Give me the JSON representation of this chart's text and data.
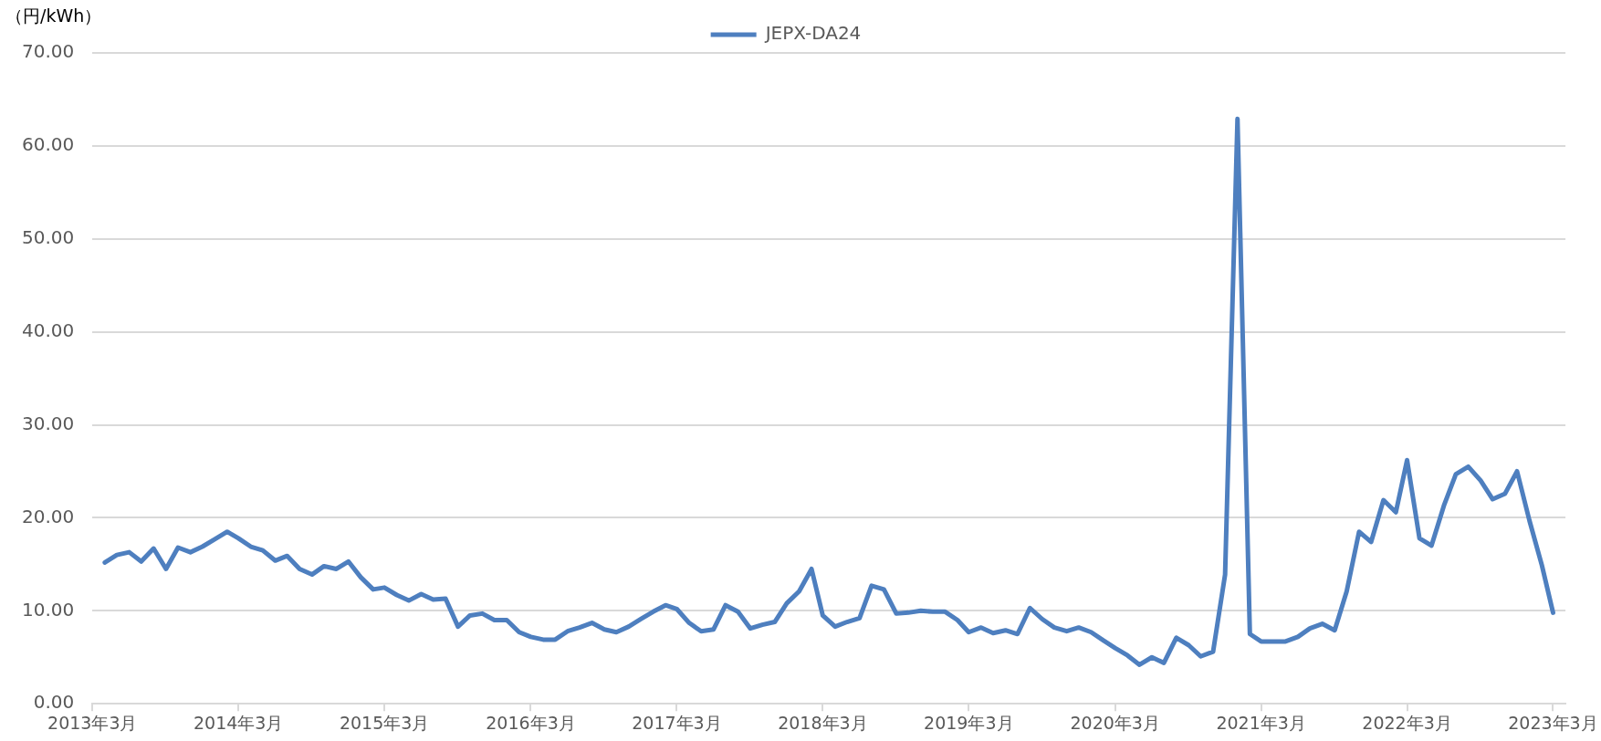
{
  "chart_data": {
    "type": "line",
    "ylabel": "（円/kWh）",
    "legend": "top",
    "grid": "y",
    "marker": "none",
    "line_style": "solid",
    "ylim": [
      0,
      70
    ],
    "yticks": [
      {
        "value": 0,
        "label": "0.00"
      },
      {
        "value": 10,
        "label": "10.00"
      },
      {
        "value": 20,
        "label": "20.00"
      },
      {
        "value": 30,
        "label": "30.00"
      },
      {
        "value": 40,
        "label": "40.00"
      },
      {
        "value": 50,
        "label": "50.00"
      },
      {
        "value": 60,
        "label": "60.00"
      },
      {
        "value": 70,
        "label": "70.00"
      }
    ],
    "xlim": [
      "2013-03",
      "2023-04"
    ],
    "xticks": [
      {
        "value": "2013-03",
        "label": "2013年3月"
      },
      {
        "value": "2014-03",
        "label": "2014年3月"
      },
      {
        "value": "2015-03",
        "label": "2015年3月"
      },
      {
        "value": "2016-03",
        "label": "2016年3月"
      },
      {
        "value": "2017-03",
        "label": "2017年3月"
      },
      {
        "value": "2018-03",
        "label": "2018年3月"
      },
      {
        "value": "2019-03",
        "label": "2019年3月"
      },
      {
        "value": "2020-03",
        "label": "2020年3月"
      },
      {
        "value": "2021-03",
        "label": "2021年3月"
      },
      {
        "value": "2022-03",
        "label": "2022年3月"
      },
      {
        "value": "2023-03",
        "label": "2023年3月"
      }
    ],
    "x": [
      "2013-04",
      "2013-05",
      "2013-06",
      "2013-07",
      "2013-08",
      "2013-09",
      "2013-10",
      "2013-11",
      "2013-12",
      "2014-01",
      "2014-02",
      "2014-03",
      "2014-04",
      "2014-05",
      "2014-06",
      "2014-07",
      "2014-08",
      "2014-09",
      "2014-10",
      "2014-11",
      "2014-12",
      "2015-01",
      "2015-02",
      "2015-03",
      "2015-04",
      "2015-05",
      "2015-06",
      "2015-07",
      "2015-08",
      "2015-09",
      "2015-10",
      "2015-11",
      "2015-12",
      "2016-01",
      "2016-02",
      "2016-03",
      "2016-04",
      "2016-05",
      "2016-06",
      "2016-07",
      "2016-08",
      "2016-09",
      "2016-10",
      "2016-11",
      "2016-12",
      "2017-01",
      "2017-02",
      "2017-03",
      "2017-04",
      "2017-05",
      "2017-06",
      "2017-07",
      "2017-08",
      "2017-09",
      "2017-10",
      "2017-11",
      "2017-12",
      "2018-01",
      "2018-02",
      "2018-03",
      "2018-04",
      "2018-05",
      "2018-06",
      "2018-07",
      "2018-08",
      "2018-09",
      "2018-10",
      "2018-11",
      "2018-12",
      "2019-01",
      "2019-02",
      "2019-03",
      "2019-04",
      "2019-05",
      "2019-06",
      "2019-07",
      "2019-08",
      "2019-09",
      "2019-10",
      "2019-11",
      "2019-12",
      "2020-01",
      "2020-02",
      "2020-03",
      "2020-04",
      "2020-05",
      "2020-06",
      "2020-07",
      "2020-08",
      "2020-09",
      "2020-10",
      "2020-11",
      "2020-12",
      "2021-01",
      "2021-02",
      "2021-03",
      "2021-04",
      "2021-05",
      "2021-06",
      "2021-07",
      "2021-08",
      "2021-09",
      "2021-10",
      "2021-11",
      "2021-12",
      "2022-01",
      "2022-02",
      "2022-03",
      "2022-04",
      "2022-05",
      "2022-06",
      "2022-07",
      "2022-08",
      "2022-09",
      "2022-10",
      "2022-11",
      "2022-12",
      "2023-01",
      "2023-02",
      "2023-03"
    ],
    "series": [
      {
        "name": "JEPX-DA24",
        "color": "#4e7fbf",
        "values": [
          15.2,
          16.0,
          16.3,
          15.3,
          16.7,
          14.5,
          16.8,
          16.3,
          16.9,
          17.7,
          18.5,
          17.8,
          16.9,
          16.5,
          15.4,
          15.9,
          14.5,
          13.9,
          14.8,
          14.5,
          15.3,
          13.6,
          12.3,
          12.5,
          11.7,
          11.1,
          11.8,
          11.2,
          11.3,
          8.3,
          9.5,
          9.7,
          9.0,
          9.0,
          7.7,
          7.2,
          6.9,
          6.9,
          7.8,
          8.2,
          8.7,
          8.0,
          7.7,
          8.3,
          9.1,
          9.9,
          10.6,
          10.2,
          8.7,
          7.8,
          8.0,
          10.6,
          9.9,
          8.1,
          8.5,
          8.8,
          10.8,
          12.1,
          14.5,
          9.5,
          8.3,
          8.8,
          9.2,
          12.7,
          12.3,
          9.7,
          9.8,
          10.0,
          9.9,
          9.9,
          9.0,
          7.7,
          8.2,
          7.6,
          7.9,
          7.5,
          10.3,
          9.1,
          8.2,
          7.8,
          8.2,
          7.7,
          6.8,
          6.0,
          5.2,
          4.2,
          5.0,
          4.4,
          7.1,
          6.3,
          5.1,
          5.6,
          13.9,
          62.9,
          7.5,
          6.7,
          6.7,
          6.7,
          7.2,
          8.1,
          8.6,
          7.9,
          12.1,
          18.5,
          17.4,
          21.9,
          20.6,
          26.2,
          17.8,
          17.0,
          21.3,
          24.7,
          25.5,
          24.0,
          22.0,
          22.6,
          25.0,
          19.7,
          14.9,
          9.8
        ]
      }
    ]
  }
}
